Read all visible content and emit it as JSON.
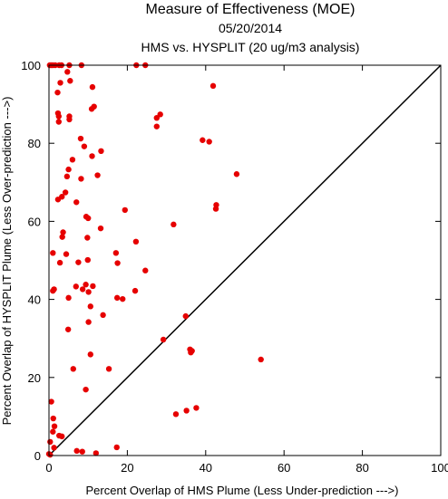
{
  "chart_data": {
    "type": "scatter",
    "title": "Measure of Effectiveness (MOE)",
    "subtitle1": "05/20/2014",
    "subtitle2": "HMS vs. HYSPLIT  (20 ug/m3 analysis)",
    "xlabel": "Percent Overlap of HMS Plume (Less Under-prediction --->)",
    "ylabel": "Percent Overlap of HYSPLIT Plume (Less Over-prediction --->)",
    "xlim": [
      0,
      100
    ],
    "ylim": [
      0,
      100
    ],
    "xticks": [
      0,
      20,
      40,
      60,
      80,
      100
    ],
    "yticks": [
      0,
      20,
      40,
      60,
      80,
      100
    ],
    "point_color": "#e60000",
    "reference_line": {
      "from": [
        0,
        0
      ],
      "to": [
        100,
        100
      ],
      "color": "#000000"
    },
    "points": [
      {
        "x": 0.2,
        "y": 100
      },
      {
        "x": 0.6,
        "y": 100
      },
      {
        "x": 1.0,
        "y": 100
      },
      {
        "x": 1.6,
        "y": 100
      },
      {
        "x": 2.6,
        "y": 100
      },
      {
        "x": 3.2,
        "y": 100
      },
      {
        "x": 5.2,
        "y": 100
      },
      {
        "x": 8.3,
        "y": 100
      },
      {
        "x": 22.3,
        "y": 100
      },
      {
        "x": 24.6,
        "y": 100
      },
      {
        "x": 4.7,
        "y": 98.3
      },
      {
        "x": 5.4,
        "y": 96.0
      },
      {
        "x": 2.9,
        "y": 95.5
      },
      {
        "x": 11.1,
        "y": 94.4
      },
      {
        "x": 2.2,
        "y": 93.0
      },
      {
        "x": 41.9,
        "y": 94.7
      },
      {
        "x": 11.5,
        "y": 89.4
      },
      {
        "x": 10.9,
        "y": 88.8
      },
      {
        "x": 2.3,
        "y": 87.7
      },
      {
        "x": 2.5,
        "y": 86.9
      },
      {
        "x": 5.2,
        "y": 86.9
      },
      {
        "x": 5.2,
        "y": 86.1
      },
      {
        "x": 2.5,
        "y": 85.5
      },
      {
        "x": 28.4,
        "y": 87.4
      },
      {
        "x": 27.5,
        "y": 86.5
      },
      {
        "x": 27.5,
        "y": 84.3
      },
      {
        "x": 8.1,
        "y": 81.2
      },
      {
        "x": 9.0,
        "y": 79.2
      },
      {
        "x": 39.2,
        "y": 80.8
      },
      {
        "x": 40.9,
        "y": 80.4
      },
      {
        "x": 13.3,
        "y": 78.0
      },
      {
        "x": 11.0,
        "y": 76.7
      },
      {
        "x": 6.0,
        "y": 75.8
      },
      {
        "x": 5.0,
        "y": 73.3
      },
      {
        "x": 4.6,
        "y": 71.5
      },
      {
        "x": 8.2,
        "y": 70.9
      },
      {
        "x": 12.4,
        "y": 71.8
      },
      {
        "x": 47.9,
        "y": 72.1
      },
      {
        "x": 4.2,
        "y": 67.4
      },
      {
        "x": 3.3,
        "y": 66.3
      },
      {
        "x": 2.3,
        "y": 65.6
      },
      {
        "x": 7.0,
        "y": 64.9
      },
      {
        "x": 42.7,
        "y": 64.2
      },
      {
        "x": 42.6,
        "y": 63.2
      },
      {
        "x": 19.4,
        "y": 62.9
      },
      {
        "x": 9.5,
        "y": 61.2
      },
      {
        "x": 10.0,
        "y": 60.8
      },
      {
        "x": 31.8,
        "y": 59.2
      },
      {
        "x": 13.2,
        "y": 58.2
      },
      {
        "x": 3.6,
        "y": 57.2
      },
      {
        "x": 3.4,
        "y": 56.0
      },
      {
        "x": 9.8,
        "y": 55.8
      },
      {
        "x": 22.2,
        "y": 54.8
      },
      {
        "x": 1.0,
        "y": 51.9
      },
      {
        "x": 4.4,
        "y": 51.6
      },
      {
        "x": 17.1,
        "y": 51.9
      },
      {
        "x": 9.9,
        "y": 50.1
      },
      {
        "x": 2.8,
        "y": 49.4
      },
      {
        "x": 7.5,
        "y": 49.5
      },
      {
        "x": 17.5,
        "y": 49.3
      },
      {
        "x": 24.6,
        "y": 47.4
      },
      {
        "x": 1.0,
        "y": 42.2
      },
      {
        "x": 1.3,
        "y": 42.6
      },
      {
        "x": 6.9,
        "y": 43.3
      },
      {
        "x": 8.6,
        "y": 42.6
      },
      {
        "x": 9.4,
        "y": 43.8
      },
      {
        "x": 11.2,
        "y": 43.4
      },
      {
        "x": 10.1,
        "y": 41.9
      },
      {
        "x": 22.0,
        "y": 42.2
      },
      {
        "x": 17.4,
        "y": 40.4
      },
      {
        "x": 18.8,
        "y": 40.1
      },
      {
        "x": 5.0,
        "y": 40.4
      },
      {
        "x": 10.6,
        "y": 38.2
      },
      {
        "x": 13.8,
        "y": 36.0
      },
      {
        "x": 34.9,
        "y": 35.7
      },
      {
        "x": 10.1,
        "y": 34.2
      },
      {
        "x": 4.9,
        "y": 32.3
      },
      {
        "x": 29.2,
        "y": 29.7
      },
      {
        "x": 36.0,
        "y": 27.2
      },
      {
        "x": 36.5,
        "y": 26.8
      },
      {
        "x": 36.2,
        "y": 26.4
      },
      {
        "x": 10.6,
        "y": 25.9
      },
      {
        "x": 54.1,
        "y": 24.6
      },
      {
        "x": 6.2,
        "y": 22.2
      },
      {
        "x": 15.3,
        "y": 22.2
      },
      {
        "x": 9.4,
        "y": 16.9
      },
      {
        "x": 0.6,
        "y": 13.8
      },
      {
        "x": 32.4,
        "y": 10.6
      },
      {
        "x": 35.1,
        "y": 11.5
      },
      {
        "x": 37.6,
        "y": 12.2
      },
      {
        "x": 1.1,
        "y": 9.5
      },
      {
        "x": 1.4,
        "y": 7.5
      },
      {
        "x": 1.0,
        "y": 6.1
      },
      {
        "x": 2.6,
        "y": 5.1
      },
      {
        "x": 3.3,
        "y": 4.9
      },
      {
        "x": 0.3,
        "y": 3.5
      },
      {
        "x": 1.3,
        "y": 2.0
      },
      {
        "x": 17.3,
        "y": 2.1
      },
      {
        "x": 7.1,
        "y": 1.2
      },
      {
        "x": 8.5,
        "y": 1.0
      },
      {
        "x": 12.0,
        "y": 0.6
      },
      {
        "x": 0.0,
        "y": 0.4
      },
      {
        "x": 0.3,
        "y": 0.2
      }
    ]
  }
}
